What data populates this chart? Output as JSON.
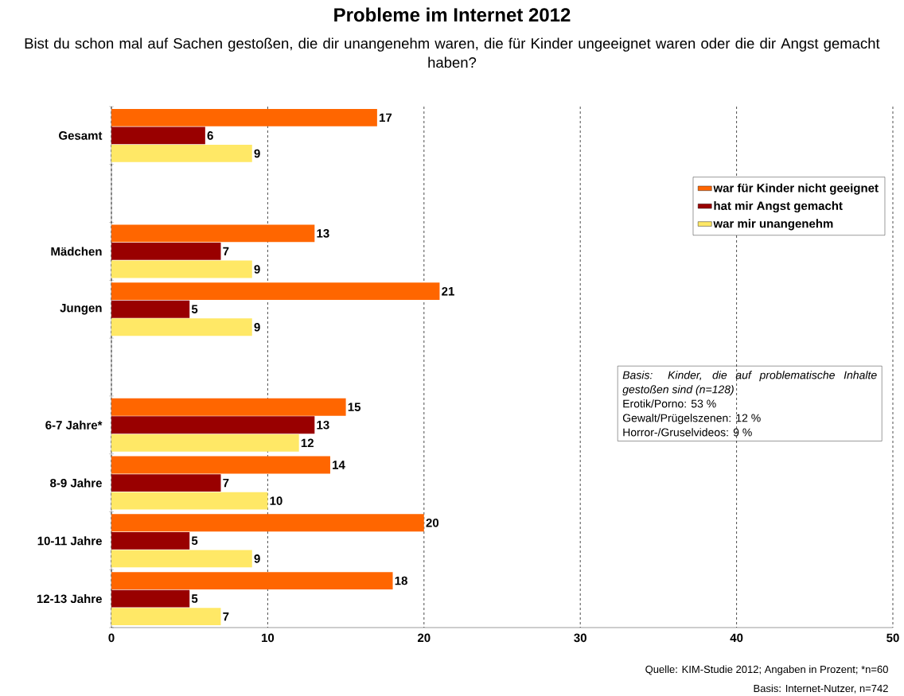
{
  "chart_data": {
    "type": "bar",
    "orientation": "horizontal",
    "title": "Probleme im Internet 2012",
    "subtitle": "Bist du schon mal auf Sachen gestoßen, die dir unangenehm waren, die für Kinder ungeeignet waren oder die dir Angst gemacht haben?",
    "categories": [
      "Gesamt",
      null,
      "Mädchen",
      "Jungen",
      null,
      "6-7 Jahre*",
      "8-9 Jahre",
      "10-11 Jahre",
      "12-13 Jahre"
    ],
    "series": [
      {
        "name": "war für Kinder nicht geeignet",
        "color": "#ff6600",
        "values": [
          17,
          null,
          13,
          21,
          null,
          15,
          14,
          20,
          18
        ]
      },
      {
        "name": "hat mir Angst gemacht",
        "color": "#990000",
        "values": [
          6,
          null,
          7,
          5,
          null,
          13,
          7,
          5,
          5
        ]
      },
      {
        "name": "war mir unangenehm",
        "color": "#ffe866",
        "values": [
          9,
          null,
          9,
          9,
          null,
          12,
          10,
          9,
          7
        ]
      }
    ],
    "xlim": [
      0,
      50
    ],
    "xticks": [
      0,
      10,
      20,
      30,
      40,
      50
    ],
    "grid": "x",
    "legend": "top right",
    "data_labels": true,
    "annotations": [
      "Basis: Kinder, die auf problematische Inhalte gestoßen sind (n=128)",
      "Erotik/Porno: 53 %",
      "Gewalt/Prügelszenen: 12 %",
      "Horror-/Gruselvideos: 9 %",
      "Quelle: KIM-Studie 2012; Angaben in Prozent; *n=60",
      "Basis: Internet-Nutzer, n=742"
    ]
  }
}
